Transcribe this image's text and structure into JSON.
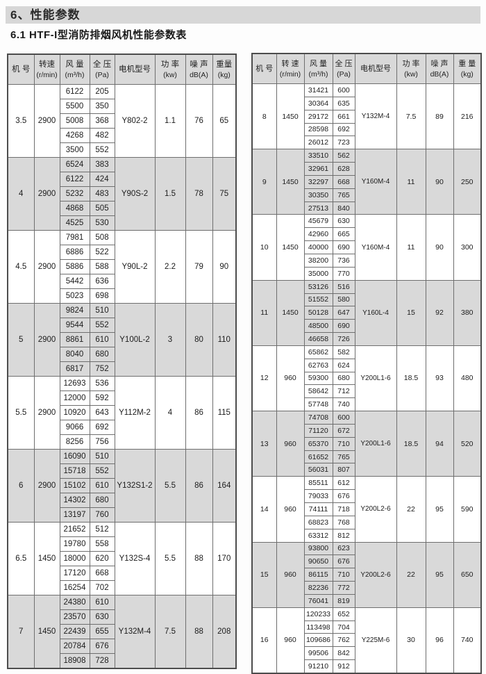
{
  "page": {
    "section_title": "6、性能参数",
    "section_subtitle": "6.1  HTF-I型消防排烟风机性能参数表"
  },
  "colors": {
    "band_gray": "#d9d9d9",
    "title_bar_gray": "#d7d7d7",
    "border": "#6e6e6e"
  },
  "tables": [
    {
      "name": "performance-table-sizes-3.5-7",
      "headers": [
        {
          "l1": "机 号",
          "l2": ""
        },
        {
          "l1": "转速",
          "l2": "(r/min)"
        },
        {
          "l1": "风 量",
          "l2": "(m³/h)"
        },
        {
          "l1": "全 压",
          "l2": "(Pa)"
        },
        {
          "l1": "电机型号",
          "l2": ""
        },
        {
          "l1": "功 率",
          "l2": "(kw)"
        },
        {
          "l1": "噪 声",
          "l2": "dB(A)"
        },
        {
          "l1": "重量",
          "l2": "(kg)"
        }
      ],
      "groups": [
        {
          "no": "3.5",
          "speed": "2900",
          "flow_pressure": [
            [
              "6122",
              "205"
            ],
            [
              "5500",
              "350"
            ],
            [
              "5008",
              "368"
            ],
            [
              "4268",
              "482"
            ],
            [
              "3500",
              "552"
            ]
          ],
          "motor": "Y802-2",
          "power": "1.1",
          "noise": "76",
          "weight": "65"
        },
        {
          "no": "4",
          "speed": "2900",
          "flow_pressure": [
            [
              "6524",
              "383"
            ],
            [
              "6122",
              "424"
            ],
            [
              "5232",
              "483"
            ],
            [
              "4868",
              "505"
            ],
            [
              "4525",
              "530"
            ]
          ],
          "motor": "Y90S-2",
          "power": "1.5",
          "noise": "78",
          "weight": "75"
        },
        {
          "no": "4.5",
          "speed": "2900",
          "flow_pressure": [
            [
              "7981",
              "508"
            ],
            [
              "6886",
              "522"
            ],
            [
              "5886",
              "588"
            ],
            [
              "5442",
              "636"
            ],
            [
              "5023",
              "698"
            ]
          ],
          "motor": "Y90L-2",
          "power": "2.2",
          "noise": "79",
          "weight": "90"
        },
        {
          "no": "5",
          "speed": "2900",
          "flow_pressure": [
            [
              "9824",
              "510"
            ],
            [
              "9544",
              "552"
            ],
            [
              "8861",
              "610"
            ],
            [
              "8040",
              "680"
            ],
            [
              "6817",
              "752"
            ]
          ],
          "motor": "Y100L-2",
          "power": "3",
          "noise": "80",
          "weight": "110"
        },
        {
          "no": "5.5",
          "speed": "2900",
          "flow_pressure": [
            [
              "12693",
              "536"
            ],
            [
              "12000",
              "592"
            ],
            [
              "10920",
              "643"
            ],
            [
              "9066",
              "692"
            ],
            [
              "8256",
              "756"
            ]
          ],
          "motor": "Y112M-2",
          "power": "4",
          "noise": "86",
          "weight": "115"
        },
        {
          "no": "6",
          "speed": "2900",
          "flow_pressure": [
            [
              "16090",
              "510"
            ],
            [
              "15718",
              "552"
            ],
            [
              "15102",
              "610"
            ],
            [
              "14302",
              "680"
            ],
            [
              "13197",
              "760"
            ]
          ],
          "motor": "Y132S1-2",
          "power": "5.5",
          "noise": "86",
          "weight": "164"
        },
        {
          "no": "6.5",
          "speed": "1450",
          "flow_pressure": [
            [
              "21652",
              "512"
            ],
            [
              "19780",
              "558"
            ],
            [
              "18000",
              "620"
            ],
            [
              "17120",
              "668"
            ],
            [
              "16254",
              "702"
            ]
          ],
          "motor": "Y132S-4",
          "power": "5.5",
          "noise": "88",
          "weight": "170"
        },
        {
          "no": "7",
          "speed": "1450",
          "flow_pressure": [
            [
              "24380",
              "610"
            ],
            [
              "23570",
              "630"
            ],
            [
              "22439",
              "655"
            ],
            [
              "20784",
              "676"
            ],
            [
              "18908",
              "728"
            ]
          ],
          "motor": "Y132M-4",
          "power": "7.5",
          "noise": "88",
          "weight": "208"
        }
      ]
    },
    {
      "name": "performance-table-sizes-8-16",
      "headers": [
        {
          "l1": "机 号",
          "l2": ""
        },
        {
          "l1": "转 速",
          "l2": "(r/min)"
        },
        {
          "l1": "风 量",
          "l2": "(m³/h)"
        },
        {
          "l1": "全 压",
          "l2": "(Pa)"
        },
        {
          "l1": "电机型号",
          "l2": ""
        },
        {
          "l1": "功 率",
          "l2": "(kw)"
        },
        {
          "l1": "噪 声",
          "l2": "dB(A)"
        },
        {
          "l1": "重 量",
          "l2": "(kg)"
        }
      ],
      "groups": [
        {
          "no": "8",
          "speed": "1450",
          "flow_pressure": [
            [
              "31421",
              "600"
            ],
            [
              "30364",
              "635"
            ],
            [
              "29172",
              "661"
            ],
            [
              "28598",
              "692"
            ],
            [
              "26012",
              "723"
            ]
          ],
          "motor": "Y132M-4",
          "power": "7.5",
          "noise": "89",
          "weight": "216"
        },
        {
          "no": "9",
          "speed": "1450",
          "flow_pressure": [
            [
              "33510",
              "562"
            ],
            [
              "32961",
              "628"
            ],
            [
              "32297",
              "668"
            ],
            [
              "30350",
              "765"
            ],
            [
              "27513",
              "840"
            ]
          ],
          "motor": "Y160M-4",
          "power": "11",
          "noise": "90",
          "weight": "250"
        },
        {
          "no": "10",
          "speed": "1450",
          "flow_pressure": [
            [
              "45679",
              "630"
            ],
            [
              "42960",
              "665"
            ],
            [
              "40000",
              "690"
            ],
            [
              "38200",
              "736"
            ],
            [
              "35000",
              "770"
            ]
          ],
          "motor": "Y160M-4",
          "power": "11",
          "noise": "90",
          "weight": "300"
        },
        {
          "no": "11",
          "speed": "1450",
          "flow_pressure": [
            [
              "53126",
              "516"
            ],
            [
              "51552",
              "580"
            ],
            [
              "50128",
              "647"
            ],
            [
              "48500",
              "690"
            ],
            [
              "46658",
              "726"
            ]
          ],
          "motor": "Y160L-4",
          "power": "15",
          "noise": "92",
          "weight": "380"
        },
        {
          "no": "12",
          "speed": "960",
          "flow_pressure": [
            [
              "65862",
              "582"
            ],
            [
              "62763",
              "624"
            ],
            [
              "59300",
              "680"
            ],
            [
              "58642",
              "712"
            ],
            [
              "57748",
              "740"
            ]
          ],
          "motor": "Y200L1-6",
          "power": "18.5",
          "noise": "93",
          "weight": "480"
        },
        {
          "no": "13",
          "speed": "960",
          "flow_pressure": [
            [
              "74708",
              "600"
            ],
            [
              "71120",
              "672"
            ],
            [
              "65370",
              "710"
            ],
            [
              "61652",
              "765"
            ],
            [
              "56031",
              "807"
            ]
          ],
          "motor": "Y200L1-6",
          "power": "18.5",
          "noise": "94",
          "weight": "520"
        },
        {
          "no": "14",
          "speed": "960",
          "flow_pressure": [
            [
              "85511",
              "612"
            ],
            [
              "79033",
              "676"
            ],
            [
              "74111",
              "718"
            ],
            [
              "68823",
              "768"
            ],
            [
              "63312",
              "812"
            ]
          ],
          "motor": "Y200L2-6",
          "power": "22",
          "noise": "95",
          "weight": "590"
        },
        {
          "no": "15",
          "speed": "960",
          "flow_pressure": [
            [
              "93800",
              "623"
            ],
            [
              "90650",
              "676"
            ],
            [
              "86115",
              "710"
            ],
            [
              "82236",
              "772"
            ],
            [
              "76041",
              "819"
            ]
          ],
          "motor": "Y200L2-6",
          "power": "22",
          "noise": "95",
          "weight": "650"
        },
        {
          "no": "16",
          "speed": "960",
          "flow_pressure": [
            [
              "120233",
              "652"
            ],
            [
              "113498",
              "704"
            ],
            [
              "109686",
              "762"
            ],
            [
              "99506",
              "842"
            ],
            [
              "91210",
              "912"
            ]
          ],
          "motor": "Y225M-6",
          "power": "30",
          "noise": "96",
          "weight": "740"
        }
      ]
    }
  ]
}
